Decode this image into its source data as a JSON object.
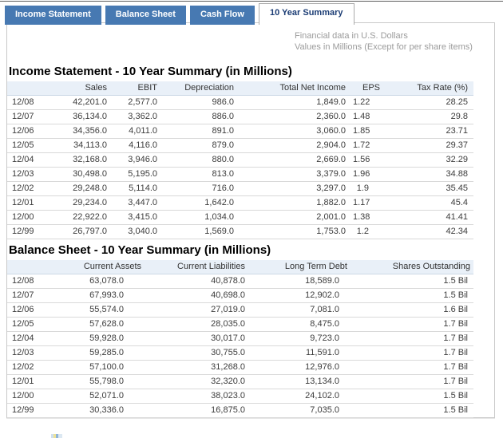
{
  "tabs": [
    {
      "label": "Income Statement",
      "active": false
    },
    {
      "label": "Balance Sheet",
      "active": false
    },
    {
      "label": "Cash Flow",
      "active": false
    },
    {
      "label": "10 Year Summary",
      "active": true
    }
  ],
  "notes": {
    "line1": "Financial data in U.S. Dollars",
    "line2": "Values in Millions (Except for per share items)"
  },
  "income_statement": {
    "title": "Income Statement - 10 Year Summary (in Millions)",
    "columns": [
      "",
      "Sales",
      "EBIT",
      "Depreciation",
      "Total Net Income",
      "EPS",
      "Tax Rate (%)"
    ],
    "rows": [
      [
        "12/08",
        "42,201.0",
        "2,577.0",
        "986.0",
        "1,849.0",
        "1.22",
        "28.25"
      ],
      [
        "12/07",
        "36,134.0",
        "3,362.0",
        "886.0",
        "2,360.0",
        "1.48",
        "29.8"
      ],
      [
        "12/06",
        "34,356.0",
        "4,011.0",
        "891.0",
        "3,060.0",
        "1.85",
        "23.71"
      ],
      [
        "12/05",
        "34,113.0",
        "4,116.0",
        "879.0",
        "2,904.0",
        "1.72",
        "29.37"
      ],
      [
        "12/04",
        "32,168.0",
        "3,946.0",
        "880.0",
        "2,669.0",
        "1.56",
        "32.29"
      ],
      [
        "12/03",
        "30,498.0",
        "5,195.0",
        "813.0",
        "3,379.0",
        "1.96",
        "34.88"
      ],
      [
        "12/02",
        "29,248.0",
        "5,114.0",
        "716.0",
        "3,297.0",
        "1.9",
        "35.45"
      ],
      [
        "12/01",
        "29,234.0",
        "3,447.0",
        "1,642.0",
        "1,882.0",
        "1.17",
        "45.4"
      ],
      [
        "12/00",
        "22,922.0",
        "3,415.0",
        "1,034.0",
        "2,001.0",
        "1.38",
        "41.41"
      ],
      [
        "12/99",
        "26,797.0",
        "3,040.0",
        "1,569.0",
        "1,753.0",
        "1.2",
        "42.34"
      ]
    ]
  },
  "balance_sheet": {
    "title": "Balance Sheet - 10 Year Summary (in Millions)",
    "columns": [
      "",
      "Current Assets",
      "Current Liabilities",
      "Long Term Debt",
      "Shares Outstanding"
    ],
    "rows": [
      [
        "12/08",
        "63,078.0",
        "40,878.0",
        "18,589.0",
        "1.5 Bil"
      ],
      [
        "12/07",
        "67,993.0",
        "40,698.0",
        "12,902.0",
        "1.5 Bil"
      ],
      [
        "12/06",
        "55,574.0",
        "27,019.0",
        "7,081.0",
        "1.6 Bil"
      ],
      [
        "12/05",
        "57,628.0",
        "28,035.0",
        "8,475.0",
        "1.7 Bil"
      ],
      [
        "12/04",
        "59,928.0",
        "30,017.0",
        "9,723.0",
        "1.7 Bil"
      ],
      [
        "12/03",
        "59,285.0",
        "30,755.0",
        "11,591.0",
        "1.7 Bil"
      ],
      [
        "12/02",
        "57,100.0",
        "31,268.0",
        "12,976.0",
        "1.7 Bil"
      ],
      [
        "12/01",
        "55,798.0",
        "32,320.0",
        "13,134.0",
        "1.7 Bil"
      ],
      [
        "12/00",
        "52,071.0",
        "38,023.0",
        "24,102.0",
        "1.5 Bil"
      ],
      [
        "12/99",
        "30,336.0",
        "16,875.0",
        "7,035.0",
        "1.5 Bil"
      ]
    ]
  },
  "colors": {
    "tab_blue": "#4779b2",
    "active_tab_text": "#1b3c74",
    "table_header_bg": "#e9f0f8",
    "note_gray": "#9b9b9b"
  }
}
